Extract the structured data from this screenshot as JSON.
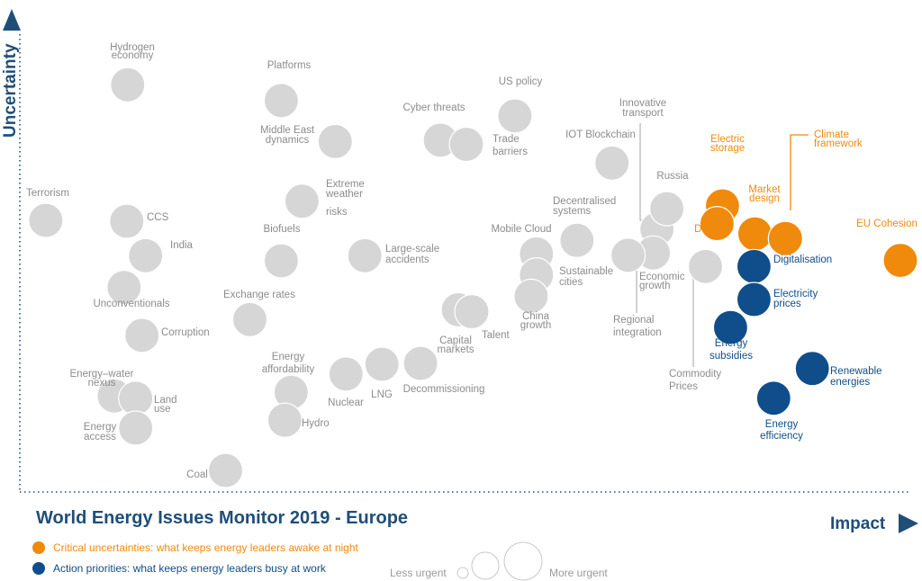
{
  "colors": {
    "grey_bubble": "#d6d6d6",
    "grey_text": "#8c8c8c",
    "orange": "#f08a0c",
    "blue": "#0f4e8a",
    "axis": "#1f4e79",
    "connector": "#b8b8b8"
  },
  "chart_data": {
    "type": "scatter",
    "title": "World Energy Issues Monitor 2019 - Europe",
    "xlabel": "Impact",
    "ylabel": "Uncertainty",
    "xlim": [
      0,
      100
    ],
    "ylim": [
      0,
      100
    ],
    "grid": false,
    "legend": [
      {
        "category": "critical",
        "text": "Critical uncertainties: what keeps energy leaders awake at night",
        "color": "orange-dot-icon"
      },
      {
        "category": "action",
        "text": "Action priorities: what keeps energy leaders busy at work",
        "color": "blue-dot-icon"
      }
    ],
    "size_legend": {
      "less": "Less urgent",
      "more": "More urgent"
    },
    "points": [
      {
        "label": "Hydrogen economy",
        "x": 12.0,
        "y": 87.6,
        "size": 2,
        "cat": "grey"
      },
      {
        "label": "Platforms",
        "x": 29.1,
        "y": 84.2,
        "size": 2,
        "cat": "grey"
      },
      {
        "label": "US policy",
        "x": 55.1,
        "y": 80.9,
        "size": 2,
        "cat": "grey"
      },
      {
        "label": "Middle East dynamics",
        "x": 35.1,
        "y": 75.4,
        "size": 2,
        "cat": "grey"
      },
      {
        "label": "Cyber threats",
        "x": 46.8,
        "y": 75.7,
        "size": 2,
        "cat": "grey"
      },
      {
        "label": "Trade barriers",
        "x": 49.7,
        "y": 74.8,
        "size": 2,
        "cat": "grey"
      },
      {
        "label": "IOT Blockchain",
        "x": 65.9,
        "y": 70.8,
        "size": 2,
        "cat": "grey"
      },
      {
        "label": "Innovative transport",
        "x": 70.9,
        "y": 56.6,
        "size": 2,
        "cat": "grey"
      },
      {
        "label": "Russia",
        "x": 72.0,
        "y": 61.0,
        "size": 2,
        "cat": "grey"
      },
      {
        "label": "Extreme weather risks",
        "x": 31.4,
        "y": 62.6,
        "size": 2,
        "cat": "grey"
      },
      {
        "label": "Terrorism",
        "x": 2.9,
        "y": 58.5,
        "size": 2,
        "cat": "grey"
      },
      {
        "label": "CCS",
        "x": 11.9,
        "y": 58.3,
        "size": 2,
        "cat": "grey"
      },
      {
        "label": "India",
        "x": 14.0,
        "y": 50.9,
        "size": 2,
        "cat": "grey"
      },
      {
        "label": "Decentralised systems",
        "x": 62.0,
        "y": 54.2,
        "size": 2,
        "cat": "grey"
      },
      {
        "label": "Mobile Cloud",
        "x": 57.5,
        "y": 51.3,
        "size": 2,
        "cat": "grey"
      },
      {
        "label": "Biofuels",
        "x": 29.1,
        "y": 49.8,
        "size": 2,
        "cat": "grey"
      },
      {
        "label": "Large-scale accidents",
        "x": 38.4,
        "y": 50.9,
        "size": 2,
        "cat": "grey"
      },
      {
        "label": "Sustainable cities",
        "x": 57.5,
        "y": 46.8,
        "size": 2,
        "cat": "grey"
      },
      {
        "label": "Economic growth",
        "x": 70.5,
        "y": 51.5,
        "size": 2,
        "cat": "grey"
      },
      {
        "label": "Regional integration",
        "x": 67.7,
        "y": 51.0,
        "size": 2,
        "cat": "grey"
      },
      {
        "label": "Commodity Prices",
        "x": 76.3,
        "y": 48.6,
        "size": 2,
        "cat": "grey"
      },
      {
        "label": "Unconventionals",
        "x": 11.6,
        "y": 44.1,
        "size": 2,
        "cat": "grey"
      },
      {
        "label": "China growth",
        "x": 56.9,
        "y": 42.2,
        "size": 2,
        "cat": "grey"
      },
      {
        "label": "Exchange rates",
        "x": 25.6,
        "y": 37.2,
        "size": 2,
        "cat": "grey"
      },
      {
        "label": "Capital markets",
        "x": 48.8,
        "y": 39.3,
        "size": 2,
        "cat": "grey"
      },
      {
        "label": "Talent",
        "x": 50.3,
        "y": 38.9,
        "size": 2,
        "cat": "grey"
      },
      {
        "label": "Corruption",
        "x": 13.6,
        "y": 33.8,
        "size": 2,
        "cat": "grey"
      },
      {
        "label": "Decommissioning",
        "x": 44.6,
        "y": 27.8,
        "size": 2,
        "cat": "grey"
      },
      {
        "label": "LNG",
        "x": 40.3,
        "y": 27.6,
        "size": 2,
        "cat": "grey"
      },
      {
        "label": "Nuclear",
        "x": 36.3,
        "y": 25.5,
        "size": 2,
        "cat": "grey"
      },
      {
        "label": "Energy affordability",
        "x": 30.2,
        "y": 21.6,
        "size": 2,
        "cat": "grey"
      },
      {
        "label": "Energy-water nexus",
        "x": 10.5,
        "y": 20.8,
        "size": 2,
        "cat": "grey"
      },
      {
        "label": "Land use",
        "x": 12.9,
        "y": 20.3,
        "size": 2,
        "cat": "grey"
      },
      {
        "label": "Hydro",
        "x": 29.5,
        "y": 15.6,
        "size": 2,
        "cat": "grey"
      },
      {
        "label": "Energy access",
        "x": 12.9,
        "y": 13.9,
        "size": 2,
        "cat": "grey"
      },
      {
        "label": "Coal",
        "x": 22.9,
        "y": 4.8,
        "size": 2,
        "cat": "grey"
      },
      {
        "label": "Electric storage",
        "x": 78.2,
        "y": 61.6,
        "size": 2,
        "cat": "critical"
      },
      {
        "label": "Data AI",
        "x": 77.6,
        "y": 57.8,
        "size": 2,
        "cat": "critical"
      },
      {
        "label": "Market design",
        "x": 81.8,
        "y": 55.6,
        "size": 2,
        "cat": "critical"
      },
      {
        "label": "Climate framework",
        "x": 85.2,
        "y": 54.6,
        "size": 2,
        "cat": "critical"
      },
      {
        "label": "EU Cohesion",
        "x": 98.0,
        "y": 49.9,
        "size": 2,
        "cat": "critical"
      },
      {
        "label": "Digitalisation",
        "x": 81.7,
        "y": 48.6,
        "size": 2,
        "cat": "action"
      },
      {
        "label": "Electricity prices",
        "x": 81.7,
        "y": 41.5,
        "size": 2,
        "cat": "action"
      },
      {
        "label": "Energy subsidies",
        "x": 79.1,
        "y": 35.5,
        "size": 2,
        "cat": "action"
      },
      {
        "label": "Renewable energies",
        "x": 88.2,
        "y": 26.7,
        "size": 2,
        "cat": "action"
      },
      {
        "label": "Energy efficiency",
        "x": 83.9,
        "y": 20.3,
        "size": 2,
        "cat": "action"
      }
    ]
  },
  "label_text": {
    "hydrogen": [
      "Hydrogen",
      "economy"
    ],
    "platforms": [
      "Platforms"
    ],
    "uspolicy": [
      "US policy"
    ],
    "innovative": [
      "Innovative",
      "transport"
    ],
    "cyber": [
      "Cyber threats"
    ],
    "middleeast": [
      "Middle East",
      "dynamics"
    ],
    "trade": [
      "Trade",
      "barriers"
    ],
    "iot": [
      "IOT Blockchain"
    ],
    "electricstorage": [
      "Electric",
      "storage"
    ],
    "climate": [
      "Climate",
      "framework"
    ],
    "russia": [
      "Russia"
    ],
    "extreme": [
      "Extreme",
      "weather"
    ],
    "risks": [
      "risks"
    ],
    "terrorism": [
      "Terrorism"
    ],
    "decentralised": [
      "Decentralised",
      "systems"
    ],
    "marketdesign": [
      "Market",
      "design"
    ],
    "ccs": [
      "CCS"
    ],
    "dataai": [
      "Data AI"
    ],
    "euc": [
      "EU Cohesion"
    ],
    "biofuels": [
      "Biofuels"
    ],
    "mobilecloud": [
      "Mobile Cloud"
    ],
    "india": [
      "India"
    ],
    "largescale": [
      "Large-scale",
      "accidents"
    ],
    "digitalisation": [
      "Digitalisation"
    ],
    "sustainable": [
      "Sustainable",
      "cities"
    ],
    "economic": [
      "Economic",
      "growth"
    ],
    "exchange": [
      "Exchange rates"
    ],
    "electricityprices": [
      "Electricity",
      "prices"
    ],
    "unconventionals": [
      "Unconventionals"
    ],
    "china": [
      "China",
      "growth"
    ],
    "regional": [
      "Regional",
      "integration"
    ],
    "corruption": [
      "Corruption"
    ],
    "talent": [
      "Talent"
    ],
    "subsidies": [
      "Energy",
      "subsidies"
    ],
    "capital": [
      "Capital",
      "markets"
    ],
    "energyaff": [
      "Energy",
      "affordability"
    ],
    "commodity": [
      "Commodity",
      "Prices"
    ],
    "renewable": [
      "Renewable",
      "energies"
    ],
    "waternexus": [
      "Energy–water",
      "nexus"
    ],
    "decommissioning": [
      "Decommissioning"
    ],
    "nuclear": [
      "Nuclear"
    ],
    "lng": [
      "LNG"
    ],
    "landuse": [
      "Land",
      "use"
    ],
    "hydro": [
      "Hydro"
    ],
    "energyeff": [
      "Energy",
      "efficiency"
    ],
    "energyaccess": [
      "Energy",
      "access"
    ],
    "coal": [
      "Coal"
    ]
  }
}
